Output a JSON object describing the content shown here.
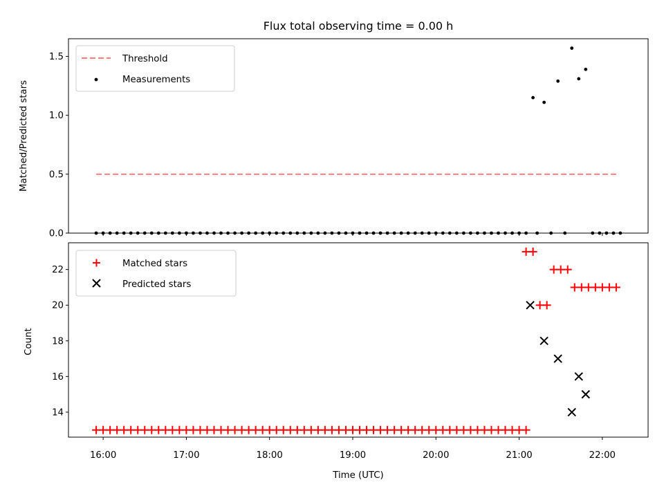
{
  "figure": {
    "title": "Flux total observing time = 0.00 h"
  },
  "chart_data": [
    {
      "type": "scatter",
      "panel": "top",
      "title": "Flux total observing time = 0.00 h",
      "xlabel": "",
      "ylabel": "Matched/Predicted stars",
      "xlim": [
        "15:35",
        "22:33"
      ],
      "ylim": [
        0.0,
        1.65
      ],
      "yticks": [
        0.0,
        0.5,
        1.0,
        1.5
      ],
      "ytick_labels": [
        "0.0",
        "0.5",
        "1.0",
        "1.5"
      ],
      "legend_placement": "upper-left",
      "threshold": {
        "name": "Threshold",
        "value": 0.5,
        "x_start": "15:55",
        "x_end": "22:10",
        "color": "#ff7f7f",
        "style": "dashed"
      },
      "series": [
        {
          "name": "Measurements",
          "color": "#000000",
          "marker": "dot",
          "points": [
            {
              "x": "21:10",
              "y": 1.15
            },
            {
              "x": "21:18",
              "y": 1.11
            },
            {
              "x": "21:28",
              "y": 1.29
            },
            {
              "x": "21:38",
              "y": 1.57
            },
            {
              "x": "21:43",
              "y": 1.31
            },
            {
              "x": "21:48",
              "y": 1.39
            },
            {
              "x": "21:00",
              "y": 0.0
            },
            {
              "x": "21:05",
              "y": 0.0
            },
            {
              "x": "21:13",
              "y": 0.0
            },
            {
              "x": "21:23",
              "y": 0.0
            },
            {
              "x": "21:33",
              "y": 0.0
            },
            {
              "x": "21:53",
              "y": 0.0
            },
            {
              "x": "21:58",
              "y": 0.0
            },
            {
              "x": "22:03",
              "y": 0.0
            },
            {
              "x": "22:08",
              "y": 0.0
            },
            {
              "x": "22:13",
              "y": 0.0
            }
          ],
          "zero_run": {
            "x_start": "15:55",
            "x_end": "20:55",
            "step_minutes": 5,
            "y": 0.0
          }
        }
      ]
    },
    {
      "type": "scatter",
      "panel": "bottom",
      "xlabel": "Time (UTC)",
      "ylabel": "Count",
      "xlim": [
        "15:35",
        "22:33"
      ],
      "ylim": [
        12.6,
        23.5
      ],
      "yticks": [
        14,
        16,
        18,
        20,
        22
      ],
      "ytick_labels": [
        "14",
        "16",
        "18",
        "20",
        "22"
      ],
      "xticks": [
        "16:00",
        "17:00",
        "18:00",
        "19:00",
        "20:00",
        "21:00",
        "22:00"
      ],
      "xtick_labels": [
        "16:00",
        "17:00",
        "18:00",
        "19:00",
        "20:00",
        "21:00",
        "22:00"
      ],
      "legend_placement": "upper-left",
      "series": [
        {
          "name": "Matched stars",
          "color": "#ff0000",
          "marker": "plus",
          "run": {
            "x_start": "15:55",
            "x_end": "21:05",
            "step_minutes": 5,
            "y": 13
          },
          "points": [
            {
              "x": "21:05",
              "y": 23
            },
            {
              "x": "21:10",
              "y": 23
            },
            {
              "x": "21:15",
              "y": 20
            },
            {
              "x": "21:20",
              "y": 20
            },
            {
              "x": "21:25",
              "y": 22
            },
            {
              "x": "21:30",
              "y": 22
            },
            {
              "x": "21:35",
              "y": 22
            },
            {
              "x": "21:40",
              "y": 21
            },
            {
              "x": "21:45",
              "y": 21
            },
            {
              "x": "21:50",
              "y": 21
            },
            {
              "x": "21:55",
              "y": 21
            },
            {
              "x": "22:00",
              "y": 21
            },
            {
              "x": "22:05",
              "y": 21
            },
            {
              "x": "22:10",
              "y": 21
            }
          ]
        },
        {
          "name": "Predicted stars",
          "color": "#000000",
          "marker": "x",
          "points": [
            {
              "x": "21:08",
              "y": 20
            },
            {
              "x": "21:18",
              "y": 18
            },
            {
              "x": "21:28",
              "y": 17
            },
            {
              "x": "21:38",
              "y": 14
            },
            {
              "x": "21:43",
              "y": 16
            },
            {
              "x": "21:48",
              "y": 15
            }
          ]
        }
      ]
    }
  ]
}
